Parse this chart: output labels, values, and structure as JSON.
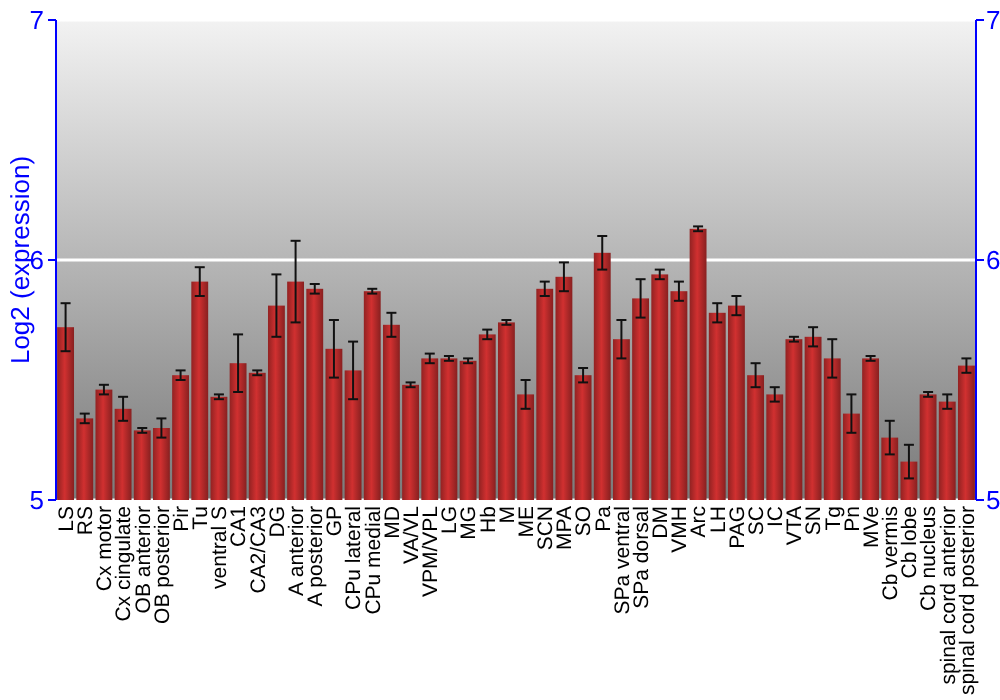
{
  "chart_data": {
    "type": "bar",
    "ylabel": "Log2 (expression)",
    "categories": [
      "LS",
      "RS",
      "Cx motor",
      "Cx cingulate",
      "OB anterior",
      "OB posterior",
      "Pir",
      "Tu",
      "ventral S",
      "CA1",
      "CA2/CA3",
      "DG",
      "A anterior",
      "A posterior",
      "GP",
      "CPu lateral",
      "CPu medial",
      "MD",
      "VA/VL",
      "VPM/VPL",
      "LG",
      "MG",
      "Hb",
      "M",
      "ME",
      "SCN",
      "MPA",
      "SO",
      "Pa",
      "SPa ventral",
      "SPa dorsal",
      "DM",
      "VMH",
      "Arc",
      "LH",
      "PAG",
      "SC",
      "IC",
      "VTA",
      "SN",
      "Tg",
      "Pn",
      "MVe",
      "Cb vermis",
      "Cb lobe",
      "Cb nucleus",
      "spinal cord anterior",
      "spinal cord posterior"
    ],
    "values": [
      5.72,
      5.34,
      5.46,
      5.38,
      5.29,
      5.3,
      5.52,
      5.91,
      5.43,
      5.57,
      5.53,
      5.81,
      5.91,
      5.88,
      5.63,
      5.54,
      5.87,
      5.73,
      5.48,
      5.59,
      5.59,
      5.58,
      5.69,
      5.74,
      5.44,
      5.88,
      5.93,
      5.52,
      6.03,
      5.67,
      5.84,
      5.94,
      5.87,
      6.13,
      5.78,
      5.81,
      5.52,
      5.44,
      5.67,
      5.68,
      5.59,
      5.36,
      5.59,
      5.26,
      5.16,
      5.44,
      5.41,
      5.56
    ],
    "errors": [
      0.1,
      0.02,
      0.02,
      0.05,
      0.01,
      0.04,
      0.02,
      0.06,
      0.01,
      0.12,
      0.01,
      0.13,
      0.17,
      0.02,
      0.12,
      0.12,
      0.01,
      0.05,
      0.01,
      0.02,
      0.01,
      0.01,
      0.02,
      0.01,
      0.06,
      0.03,
      0.06,
      0.03,
      0.07,
      0.08,
      0.08,
      0.02,
      0.04,
      0.01,
      0.04,
      0.04,
      0.05,
      0.03,
      0.01,
      0.04,
      0.08,
      0.08,
      0.01,
      0.07,
      0.07,
      0.01,
      0.03,
      0.03
    ],
    "color": "#b52a2a",
    "ylim": [
      5,
      7
    ],
    "yticks": [
      5,
      6,
      7
    ],
    "y2lim": [
      5,
      7
    ],
    "y2ticks": [
      5,
      6,
      7
    ],
    "grid": "y"
  }
}
